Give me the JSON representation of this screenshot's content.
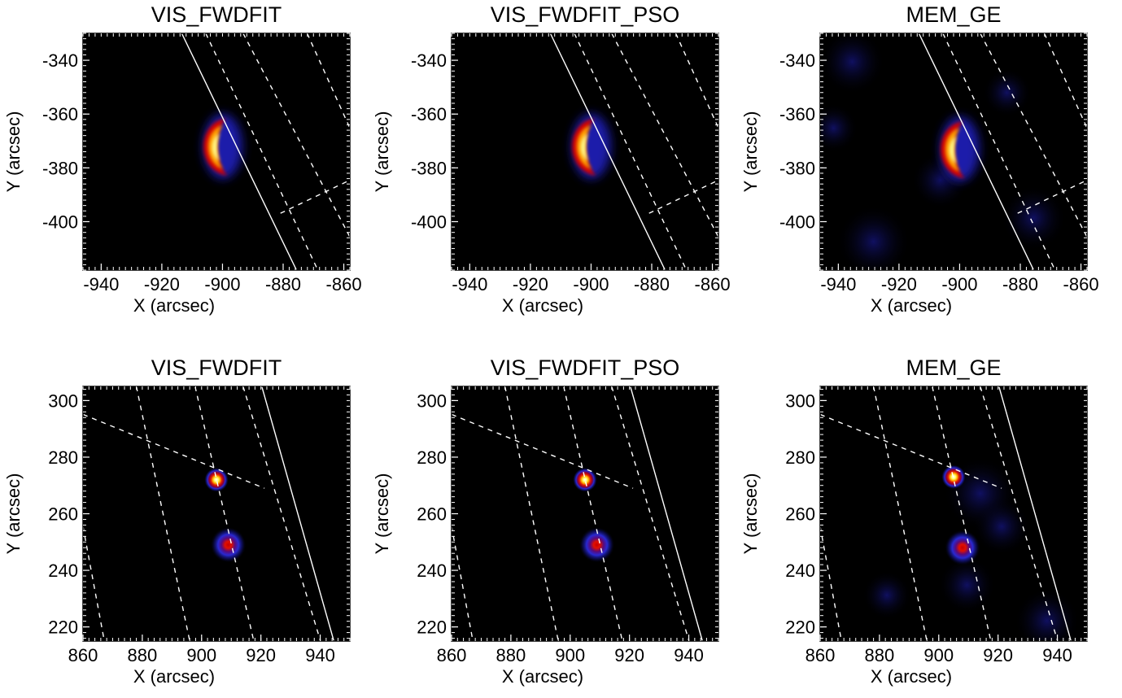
{
  "chart_data": [
    {
      "type": "heatmap",
      "title": "VIS_FWDFIT",
      "xlabel": "X (arcsec)",
      "ylabel": "Y (arcsec)",
      "xlim": [
        -946,
        -858
      ],
      "ylim": [
        -418,
        -330
      ],
      "xticks": [
        -940,
        -920,
        -900,
        -880,
        -860
      ],
      "yticks": [
        -340,
        -360,
        -380,
        -400
      ],
      "method": "VIS_FWDFIT",
      "sources": [
        {
          "shape": "crescent",
          "x": -901,
          "y": -372,
          "peak": 1.0
        }
      ]
    },
    {
      "type": "heatmap",
      "title": "VIS_FWDFIT_PSO",
      "xlabel": "X (arcsec)",
      "ylabel": "Y (arcsec)",
      "xlim": [
        -946,
        -858
      ],
      "ylim": [
        -418,
        -330
      ],
      "xticks": [
        -940,
        -920,
        -900,
        -880,
        -860
      ],
      "yticks": [
        -340,
        -360,
        -380,
        -400
      ],
      "method": "VIS_FWDFIT_PSO",
      "sources": [
        {
          "shape": "crescent",
          "x": -901,
          "y": -372,
          "peak": 1.0
        }
      ]
    },
    {
      "type": "heatmap",
      "title": "MEM_GE",
      "xlabel": "X (arcsec)",
      "ylabel": "Y (arcsec)",
      "xlim": [
        -946,
        -858
      ],
      "ylim": [
        -418,
        -330
      ],
      "xticks": [
        -940,
        -920,
        -900,
        -880,
        -860
      ],
      "yticks": [
        -340,
        -360,
        -380,
        -400
      ],
      "method": "MEM_GE",
      "sources": [
        {
          "shape": "crescent",
          "x": -901,
          "y": -373,
          "peak": 1.0
        }
      ]
    },
    {
      "type": "heatmap",
      "title": "VIS_FWDFIT",
      "xlabel": "X (arcsec)",
      "ylabel": "Y (arcsec)",
      "xlim": [
        860,
        950
      ],
      "ylim": [
        215,
        305
      ],
      "xticks": [
        860,
        880,
        900,
        920,
        940
      ],
      "yticks": [
        300,
        280,
        260,
        240,
        220
      ],
      "method": "VIS_FWDFIT",
      "sources": [
        {
          "shape": "gaussian",
          "x": 905,
          "y": 272,
          "peak": 1.0
        },
        {
          "shape": "gaussian",
          "x": 909,
          "y": 249,
          "peak": 0.8
        }
      ]
    },
    {
      "type": "heatmap",
      "title": "VIS_FWDFIT_PSO",
      "xlabel": "X (arcsec)",
      "ylabel": "Y (arcsec)",
      "xlim": [
        860,
        950
      ],
      "ylim": [
        215,
        305
      ],
      "xticks": [
        860,
        880,
        900,
        920,
        940
      ],
      "yticks": [
        300,
        280,
        260,
        240,
        220
      ],
      "method": "VIS_FWDFIT_PSO",
      "sources": [
        {
          "shape": "gaussian",
          "x": 905,
          "y": 272,
          "peak": 1.0
        },
        {
          "shape": "gaussian",
          "x": 909,
          "y": 249,
          "peak": 0.8
        }
      ]
    },
    {
      "type": "heatmap",
      "title": "MEM_GE",
      "xlabel": "X (arcsec)",
      "ylabel": "Y (arcsec)",
      "xlim": [
        860,
        950
      ],
      "ylim": [
        215,
        305
      ],
      "xticks": [
        860,
        880,
        900,
        920,
        940
      ],
      "yticks": [
        300,
        280,
        260,
        240,
        220
      ],
      "method": "MEM_GE",
      "sources": [
        {
          "shape": "gaussian",
          "x": 905,
          "y": 273,
          "peak": 1.0
        },
        {
          "shape": "gaussian",
          "x": 908,
          "y": 248,
          "peak": 0.9
        }
      ]
    }
  ],
  "colors": {
    "background": "#000000",
    "limb_line": "#ffffff",
    "grid_lines": "#ffffff",
    "colormap": [
      "#000000",
      "#1a1aa8",
      "#3c3cff",
      "#c80000",
      "#ff2a00",
      "#ffb000",
      "#ffff60",
      "#ffffff"
    ]
  }
}
